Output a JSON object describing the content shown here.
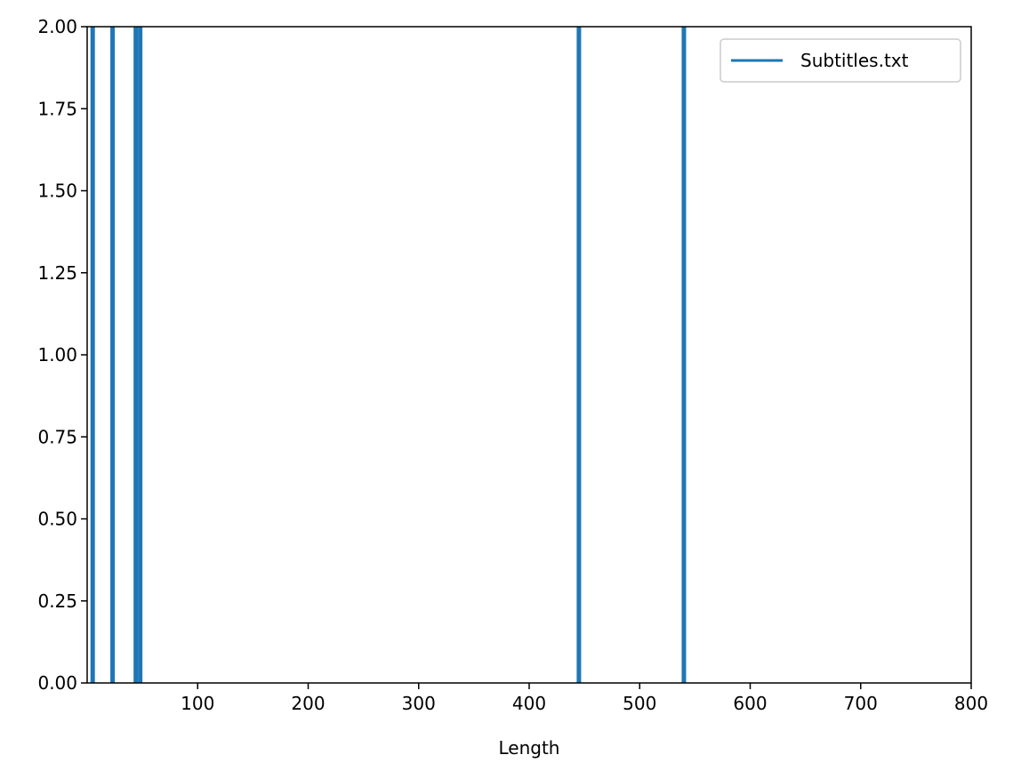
{
  "chart_data": {
    "type": "histogram",
    "title": "",
    "xlabel": "Length",
    "ylabel": "",
    "xlim": [
      0,
      800
    ],
    "ylim": [
      0,
      2
    ],
    "xticks": [
      100,
      200,
      300,
      400,
      500,
      600,
      700,
      800
    ],
    "xtick_labels": [
      "100",
      "200",
      "300",
      "400",
      "500",
      "600",
      "700",
      "800"
    ],
    "yticks": [
      0,
      0.25,
      0.5,
      0.75,
      1.0,
      1.25,
      1.5,
      1.75,
      2.0
    ],
    "ytick_labels": [
      "0.00",
      "0.25",
      "0.50",
      "0.75",
      "1.00",
      "1.25",
      "1.50",
      "1.75",
      "2.00"
    ],
    "grid": false,
    "legend_position": "top-right",
    "series": [
      {
        "name": "Subtitles.txt",
        "color": "#1f77b4",
        "line_style": "step",
        "bars": [
          {
            "x": 5,
            "count": 2
          },
          {
            "x": 23,
            "count": 2
          },
          {
            "x": 44,
            "count": 2
          },
          {
            "x": 48,
            "count": 2
          },
          {
            "x": 445,
            "count": 2
          },
          {
            "x": 540,
            "count": 2
          }
        ]
      }
    ]
  }
}
